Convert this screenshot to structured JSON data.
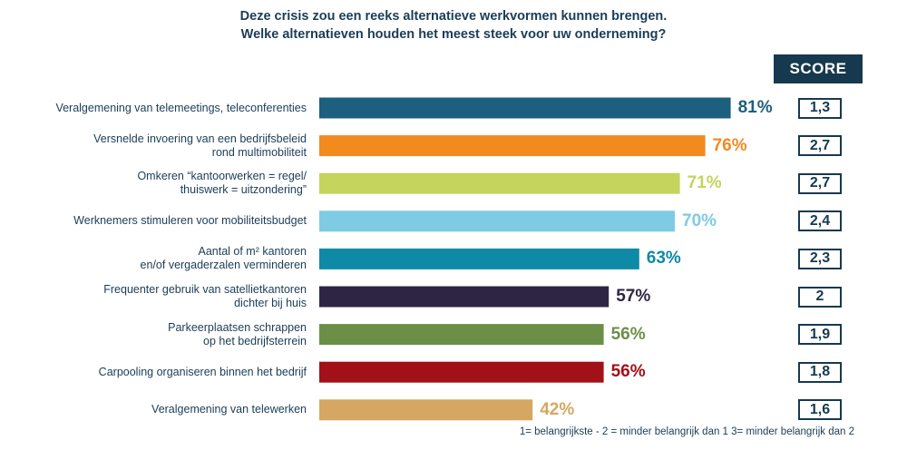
{
  "chart_data": {
    "type": "bar",
    "orientation": "horizontal",
    "title": [
      "Deze crisis zou een reeks alternatieve werkvormen kunnen brengen.",
      "Welke alternatieven houden het meest steek voor uw onderneming?"
    ],
    "categories": [
      [
        "Veralgemening van telemeetings, teleconferenties"
      ],
      [
        "Versnelde invoering van een bedrijfsbeleid",
        "rond multimobiliteit"
      ],
      [
        "Omkeren “kantoorwerken = regel/",
        "thuiswerk = uitzondering”"
      ],
      [
        "Werknemers stimuleren voor mobiliteitsbudget"
      ],
      [
        "Aantal of m² kantoren",
        "en/of vergaderzalen verminderen"
      ],
      [
        "Frequenter gebruik van satellietkantoren",
        "dichter bij huis"
      ],
      [
        "Parkeerplaatsen schrappen",
        "op het bedrijfsterrein"
      ],
      [
        "Carpooling organiseren binnen het bedrijf"
      ],
      [
        "Veralgemening van telewerken"
      ]
    ],
    "values": [
      81,
      76,
      71,
      70,
      63,
      57,
      56,
      56,
      42
    ],
    "value_labels": [
      "81%",
      "76%",
      "71%",
      "70%",
      "63%",
      "57%",
      "56%",
      "56%",
      "42%"
    ],
    "colors": [
      "#1c5f7e",
      "#f28a1e",
      "#c5d45c",
      "#7fcbe3",
      "#0f8aa6",
      "#2e2544",
      "#6c8f47",
      "#a11117",
      "#d5a762"
    ],
    "score_header": "SCORE",
    "scores": [
      "1,3",
      "2,7",
      "2,7",
      "2,4",
      "2,3",
      "2",
      "1,9",
      "1,8",
      "1,6"
    ],
    "xlim": [
      0,
      100
    ],
    "grid": false,
    "legend": "none",
    "footnote": "1= belangrijkste - 2 = minder belangrijk dan 1 3= minder belangrijk dan 2"
  }
}
